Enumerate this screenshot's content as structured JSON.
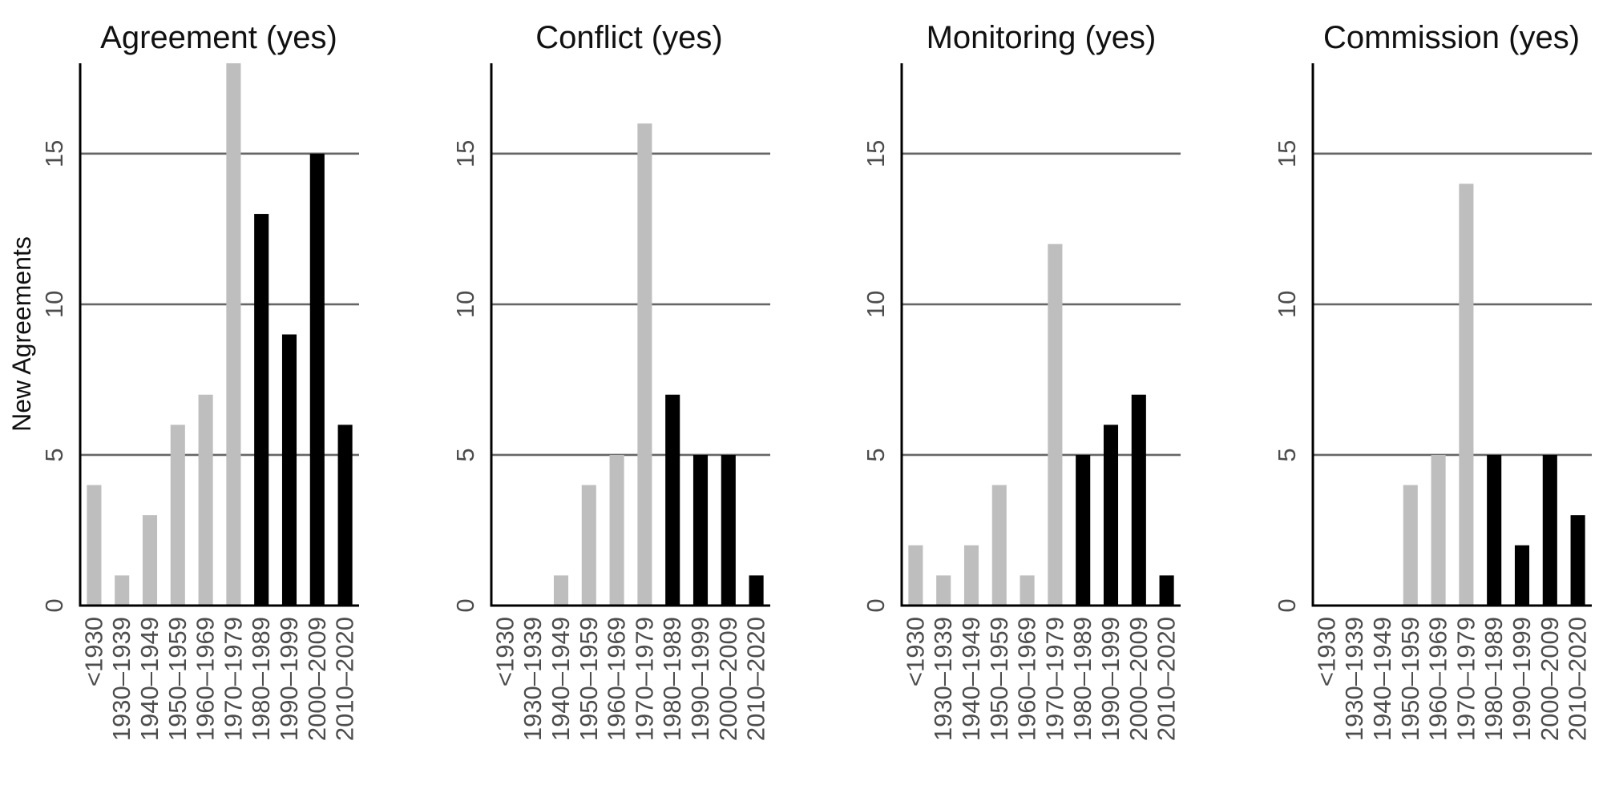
{
  "chart_data": [
    {
      "type": "bar",
      "title": "Agreement (yes)",
      "ylabel": "New Agreements",
      "xlabel": "",
      "categories": [
        "<1930",
        "1930–1939",
        "1940–1949",
        "1950–1959",
        "1960–1969",
        "1970–1979",
        "1980–1989",
        "1990–1999",
        "2000–2009",
        "2010–2020"
      ],
      "values": [
        4,
        1,
        3,
        6,
        7,
        18,
        13,
        9,
        15,
        6
      ],
      "ylim": [
        0,
        18
      ],
      "yticks": [
        0,
        5,
        10,
        15
      ],
      "grid": true
    },
    {
      "type": "bar",
      "title": "Conflict (yes)",
      "ylabel": "",
      "xlabel": "",
      "categories": [
        "<1930",
        "1930–1939",
        "1940–1949",
        "1950–1959",
        "1960–1969",
        "1970–1979",
        "1980–1989",
        "1990–1999",
        "2000–2009",
        "2010–2020"
      ],
      "values": [
        0,
        0,
        1,
        4,
        5,
        16,
        7,
        5,
        5,
        1
      ],
      "ylim": [
        0,
        18
      ],
      "yticks": [
        0,
        5,
        10,
        15
      ],
      "grid": true
    },
    {
      "type": "bar",
      "title": "Monitoring (yes)",
      "ylabel": "",
      "xlabel": "",
      "categories": [
        "<1930",
        "1930–1939",
        "1940–1949",
        "1950–1959",
        "1960–1969",
        "1970–1979",
        "1980–1989",
        "1990–1999",
        "2000–2009",
        "2010–2020"
      ],
      "values": [
        2,
        1,
        2,
        4,
        1,
        12,
        5,
        6,
        7,
        1
      ],
      "ylim": [
        0,
        18
      ],
      "yticks": [
        0,
        5,
        10,
        15
      ],
      "grid": true
    },
    {
      "type": "bar",
      "title": "Commission (yes)",
      "ylabel": "",
      "xlabel": "",
      "categories": [
        "<1930",
        "1930–1939",
        "1940–1949",
        "1950–1959",
        "1960–1969",
        "1970–1979",
        "1980–1989",
        "1990–1999",
        "2000–2009",
        "2010–2020"
      ],
      "values": [
        0,
        0,
        0,
        4,
        5,
        14,
        5,
        2,
        5,
        3
      ],
      "ylim": [
        0,
        18
      ],
      "yticks": [
        0,
        5,
        10,
        15
      ],
      "grid": true
    }
  ],
  "colors": {
    "pre1980_bar": "#bebebe",
    "post1980_bar": "#000000",
    "gridline": "#666666",
    "axis": "#000000",
    "tick_text": "#4d4d4d"
  }
}
